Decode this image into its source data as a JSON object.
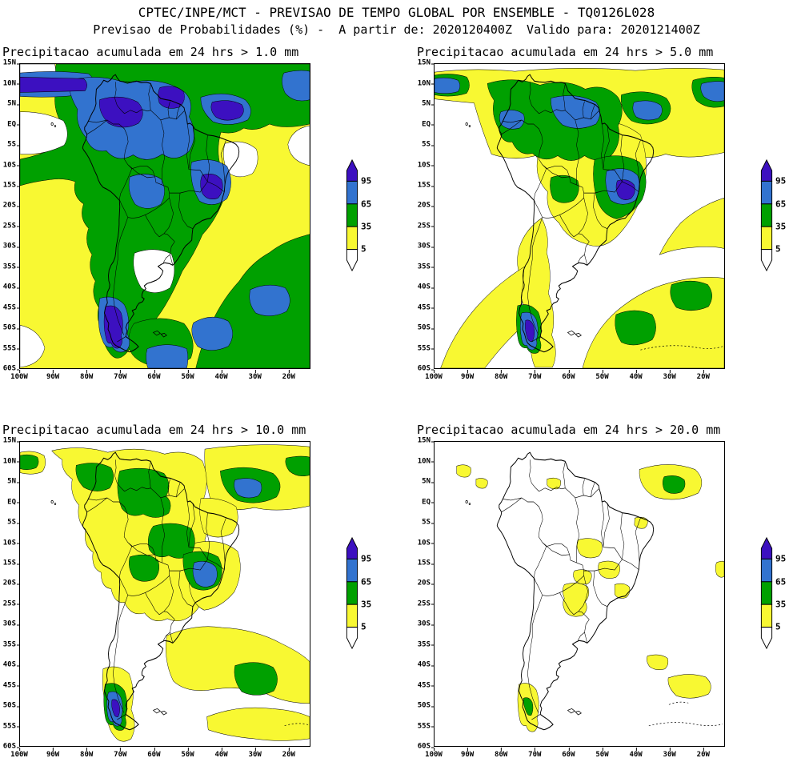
{
  "header": {
    "line1": "CPTEC/INPE/MCT - PREVISAO DE TEMPO GLOBAL POR ENSEMBLE - TQ0126L028",
    "line2": "Previsao de Probabilidades (%) -  A partir de: 2020120400Z  Valido para: 2020121400Z"
  },
  "panels": [
    {
      "title": "Precipitacao acumulada em 24 hrs > 1.0 mm",
      "threshold_mm": "1.0"
    },
    {
      "title": "Precipitacao acumulada em 24 hrs > 5.0 mm",
      "threshold_mm": "5.0"
    },
    {
      "title": "Precipitacao acumulada em 24 hrs > 10.0 mm",
      "threshold_mm": "10.0"
    },
    {
      "title": "Precipitacao acumulada em 24 hrs > 20.0 mm",
      "threshold_mm": "20.0"
    }
  ],
  "axes": {
    "lat_labels": [
      "15N",
      "10N",
      "5N",
      "EQ",
      "5S",
      "10S",
      "15S",
      "20S",
      "25S",
      "30S",
      "35S",
      "40S",
      "45S",
      "50S",
      "55S",
      "60S"
    ],
    "lon_labels": [
      "100W",
      "90W",
      "80W",
      "70W",
      "60W",
      "50W",
      "40W",
      "30W",
      "20W"
    ]
  },
  "legend": {
    "values": [
      "95",
      "65",
      "35",
      "5"
    ],
    "colors": {
      "p95": "#3c10c0",
      "p65": "#3273cf",
      "p35": "#00a000",
      "p5": "#f8f832",
      "below": "#ffffff"
    }
  },
  "chart_data": {
    "type": "heatmap",
    "subtype": "filled-contour ensemble probability maps (4 panels)",
    "region": "South America and adjacent oceans",
    "x": {
      "label": "longitude",
      "ticks": [
        "100W",
        "90W",
        "80W",
        "70W",
        "60W",
        "50W",
        "40W",
        "30W",
        "20W"
      ],
      "range_deg": [
        -100,
        -14
      ]
    },
    "y": {
      "label": "latitude",
      "ticks": [
        "15N",
        "10N",
        "5N",
        "EQ",
        "5S",
        "10S",
        "15S",
        "20S",
        "25S",
        "30S",
        "35S",
        "40S",
        "45S",
        "50S",
        "55S",
        "60S"
      ],
      "range_deg": [
        15,
        -60
      ]
    },
    "colorbar": {
      "levels_percent": [
        5,
        35,
        65,
        95
      ],
      "bins": [
        {
          "range": "< 5%",
          "color": "#ffffff"
        },
        {
          "range": "5-35%",
          "color": "#f8f832"
        },
        {
          "range": "35-65%",
          "color": "#00a000"
        },
        {
          "range": "65-95%",
          "color": "#3273cf"
        },
        {
          "range": "> 95%",
          "color": "#3c10c0"
        }
      ],
      "orientation": "vertical",
      "arrows": "above 95 (purple) and below 5 (white)"
    },
    "maps": [
      {
        "title": "Precipitacao acumulada em 24 hrs > 1.0 mm",
        "threshold_mm": 1.0,
        "summary": "Probabilities >35% (green) cover nearly the whole continent and the western tropical Atlantic; >65% (blue) over Amazonia, the Guianas, the ITCZ band near 5N, Bolivia, southeast Brazil, southern Chile and parts of the far South Atlantic; >95% (purple) cores over western Amazonia, the ITCZ, northeast Atlantic near 35W, southeast Brazil (~20S/45W) and Patagonian Chile; 5-35% (yellow) over the subtropical South Pacific and the South Atlantic off Brazil; <5% (white) off Peru, over central Argentina, off northeast Brazil and in the far eastern Atlantic."
      },
      {
        "title": "Precipitacao acumulada em 24 hrs > 5.0 mm",
        "threshold_mm": 5.0,
        "summary": "Green (>35%) over Amazonia, the ITCZ band, northeast Atlantic, southeast Brazil, southern Chile and two mid-South-Atlantic blobs; blue (>65%) cores inside those regions; small >95% cores over southeast Brazil and southern Chile; yellow (5-35%) over most of the remaining continent, a band along the Chilean coast and the southwestern/southeastern Atlantic; white (<5%) over the southeast Pacific, central Argentina and parts of the subtropical Atlantic."
      },
      {
        "title": "Precipitacao acumulada em 24 hrs > 10.0 mm",
        "threshold_mm": 10.0,
        "summary": "Yellow (5-35%) over most of tropical South America and a broad SW-NE band of the South Atlantic; green (>35%) patches over the ITCZ near 5N/35W, northern Amazonia, central and southeast Brazil, Bolivia, southern Chile and the mid South Atlantic; small blue (>65%) cores over southeast Brazil, the ITCZ and southern Chile; tiny >95% core over Patagonian Chile."
      },
      {
        "title": "Precipitacao acumulada em 24 hrs > 20.0 mm",
        "threshold_mm": 20.0,
        "summary": "Mostly white (<5%); scattered yellow (5-35%) spots over the ITCZ near 5N/30W (with a small green >35% core), northern South America, central Brazil, Paraguay/northern Argentina, the southeast Brazilian coast, southern Chile (with a small green core) and parts of the subtropical South Atlantic."
      }
    ]
  }
}
